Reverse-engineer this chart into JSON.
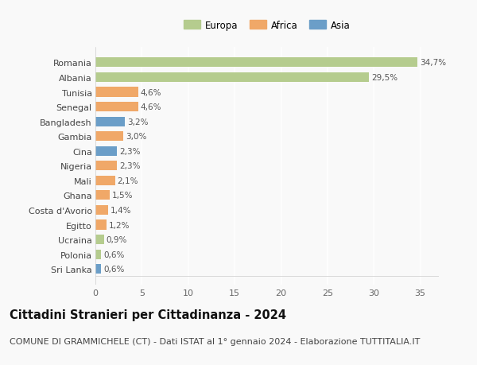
{
  "countries": [
    "Romania",
    "Albania",
    "Tunisia",
    "Senegal",
    "Bangladesh",
    "Gambia",
    "Cina",
    "Nigeria",
    "Mali",
    "Ghana",
    "Costa d'Avorio",
    "Egitto",
    "Ucraina",
    "Polonia",
    "Sri Lanka"
  ],
  "values": [
    34.7,
    29.5,
    4.6,
    4.6,
    3.2,
    3.0,
    2.3,
    2.3,
    2.1,
    1.5,
    1.4,
    1.2,
    0.9,
    0.6,
    0.6
  ],
  "labels": [
    "34,7%",
    "29,5%",
    "4,6%",
    "4,6%",
    "3,2%",
    "3,0%",
    "2,3%",
    "2,3%",
    "2,1%",
    "1,5%",
    "1,4%",
    "1,2%",
    "0,9%",
    "0,6%",
    "0,6%"
  ],
  "continents": [
    "Europa",
    "Europa",
    "Africa",
    "Africa",
    "Asia",
    "Africa",
    "Asia",
    "Africa",
    "Africa",
    "Africa",
    "Africa",
    "Africa",
    "Europa",
    "Europa",
    "Asia"
  ],
  "colors": {
    "Europa": "#b5cc8e",
    "Africa": "#f0a868",
    "Asia": "#6b9ec8"
  },
  "xlim": [
    0,
    37
  ],
  "xticks": [
    0,
    5,
    10,
    15,
    20,
    25,
    30,
    35
  ],
  "background_color": "#f9f9f9",
  "grid_color": "#ffffff",
  "title": "Cittadini Stranieri per Cittadinanza - 2024",
  "subtitle": "COMUNE DI GRAMMICHELE (CT) - Dati ISTAT al 1° gennaio 2024 - Elaborazione TUTTITALIA.IT",
  "title_fontsize": 10.5,
  "subtitle_fontsize": 8,
  "bar_height": 0.65
}
